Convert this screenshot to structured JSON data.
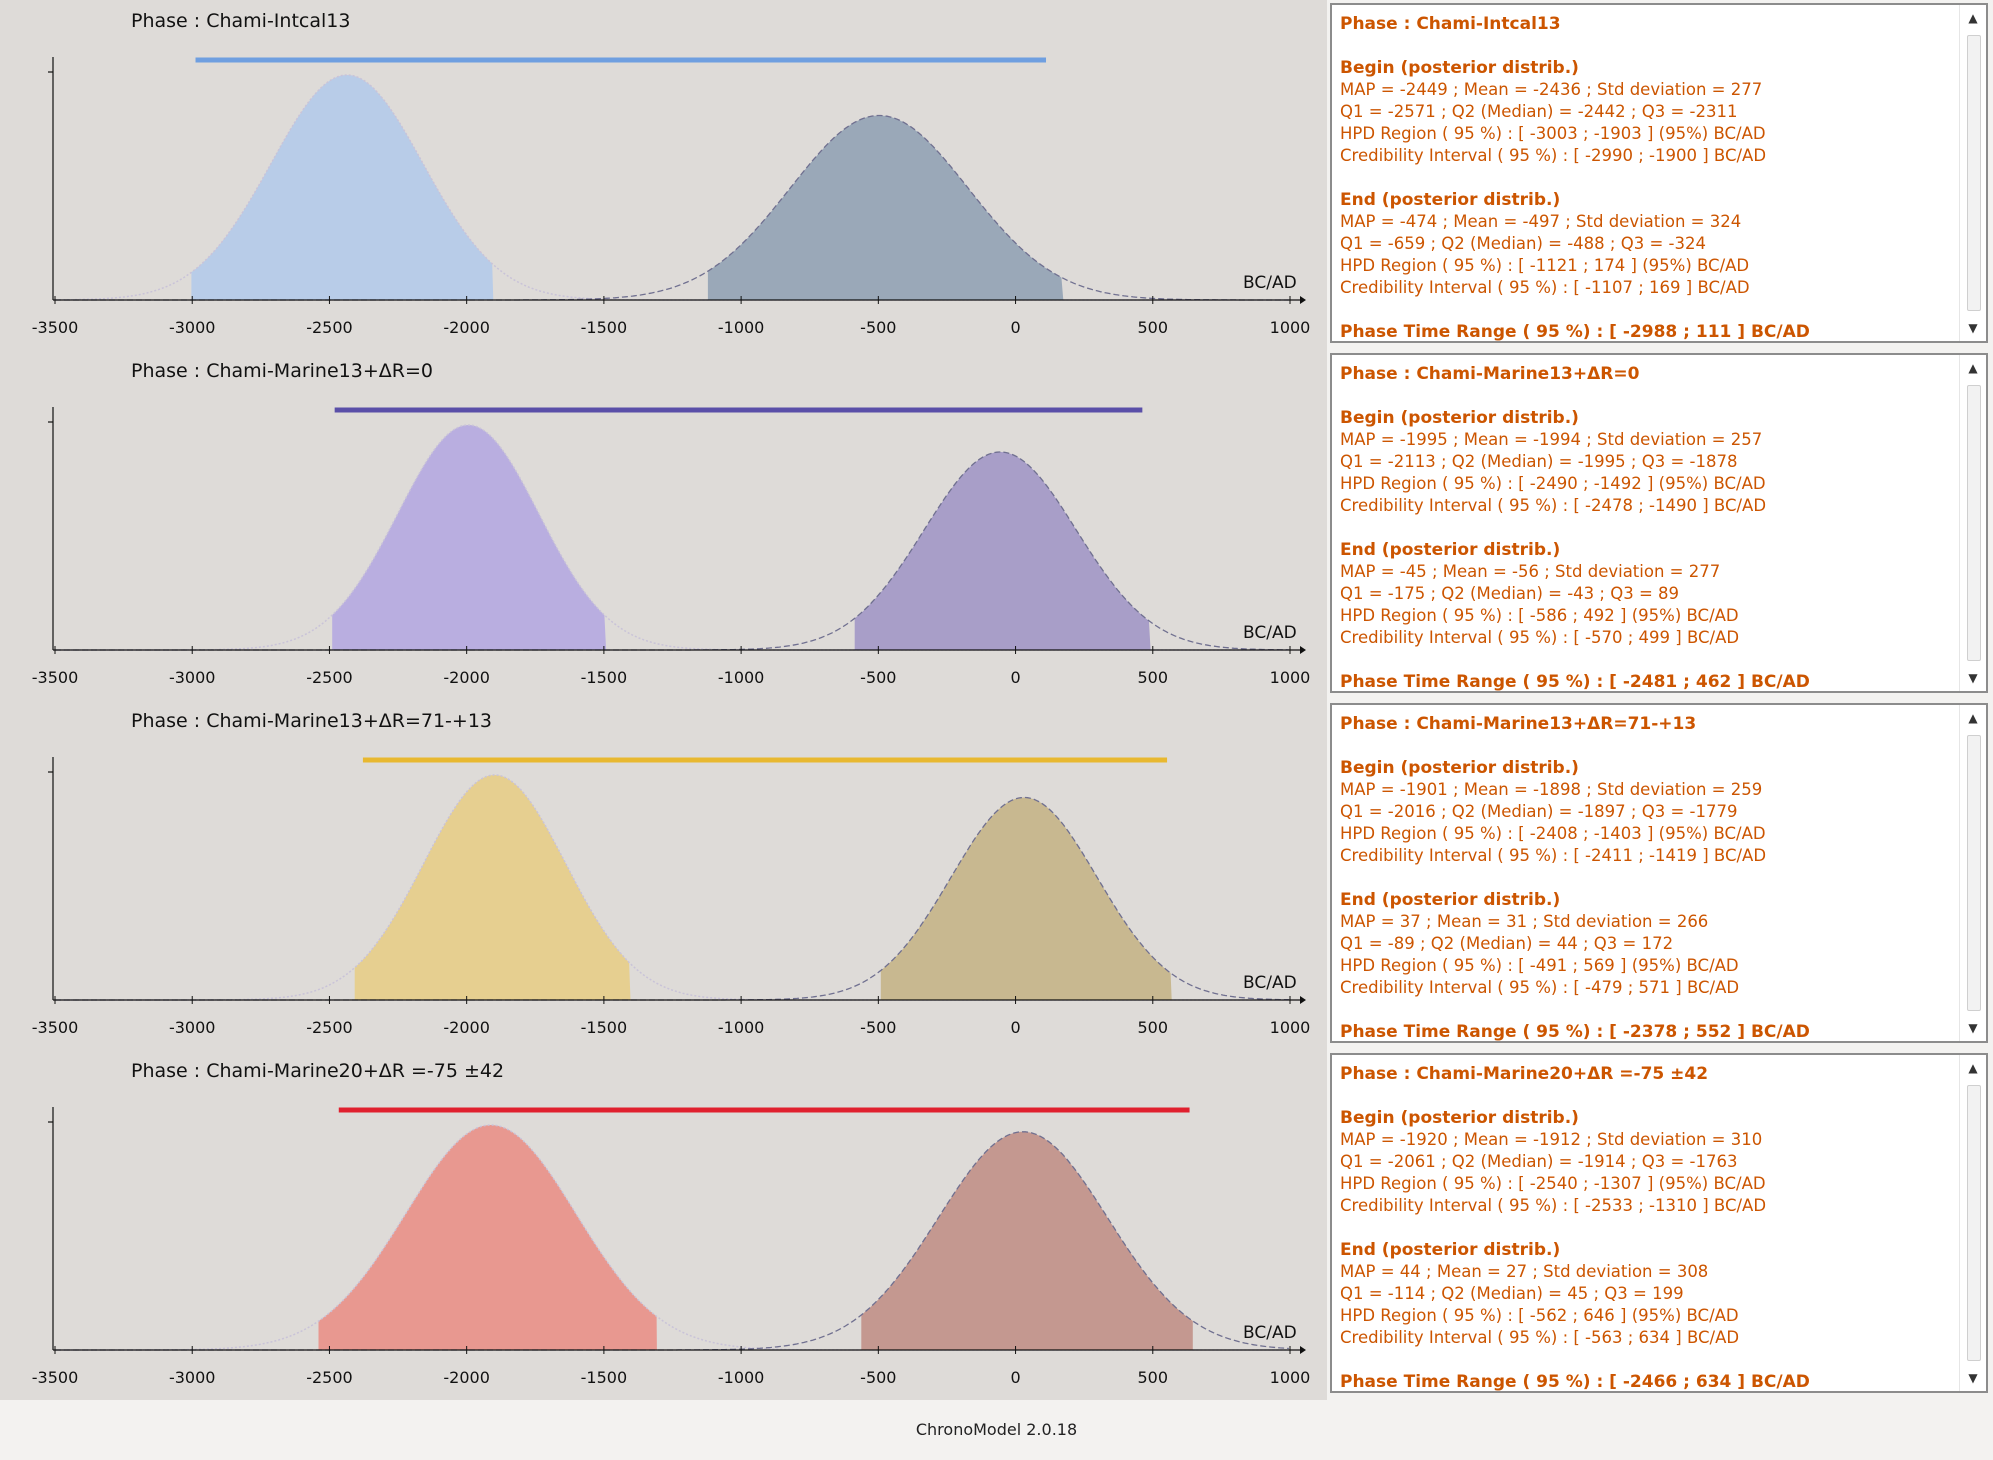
{
  "footer": {
    "app_version": "ChronoModel 2.0.18"
  },
  "axis": {
    "xmin": -3500,
    "xmax": 1000,
    "ticks": [
      "-3500",
      "-3000",
      "-2500",
      "-2000",
      "-1500",
      "-1000",
      "-500",
      "0",
      "500",
      "1000"
    ],
    "unit_label": "BC/AD"
  },
  "phases": [
    {
      "title": "Phase : Chami-Intcal13",
      "color": "#6f9fe0",
      "begin_fill": "#b8cce8",
      "end_fill": "#9aa8b8",
      "time_range": [
        -2988,
        111
      ],
      "begin": {
        "mean": -2436,
        "sd": 277,
        "hpd": [
          -3003,
          -1903
        ],
        "peak": 1.0
      },
      "end": {
        "mean": -497,
        "sd": 324,
        "hpd": [
          -1121,
          174
        ],
        "peak": 0.82
      },
      "stats": {
        "header": "Phase : Chami-Intcal13",
        "begin_title": "Begin (posterior distrib.)",
        "begin_lines": [
          "MAP = -2449 ; Mean = -2436 ; Std deviation = 277",
          "Q1 = -2571 ; Q2 (Median) = -2442 ; Q3 = -2311",
          "HPD Region ( 95 %) : [ -3003 ; -1903 ] (95%) BC/AD",
          "Credibility Interval ( 95 %) : [ -2990 ; -1900 ] BC/AD"
        ],
        "end_title": "End (posterior distrib.)",
        "end_lines": [
          "MAP = -474 ; Mean = -497 ; Std deviation = 324",
          "Q1 = -659 ; Q2 (Median) = -488 ; Q3 = -324",
          "HPD Region ( 95 %) : [ -1121 ; 174 ] (95%) BC/AD",
          "Credibility Interval ( 95 %) : [ -1107 ; 169 ] BC/AD"
        ],
        "time_range": "Phase Time Range ( 95 %) : [ -2988 ; 111 ] BC/AD"
      }
    },
    {
      "title": "Phase : Chami-Marine13+ΔR=0",
      "color": "#5a4fa8",
      "begin_fill": "#b9aee0",
      "end_fill": "#a89ec8",
      "time_range": [
        -2481,
        462
      ],
      "begin": {
        "mean": -1994,
        "sd": 257,
        "hpd": [
          -2490,
          -1492
        ],
        "peak": 1.0
      },
      "end": {
        "mean": -56,
        "sd": 277,
        "hpd": [
          -586,
          492
        ],
        "peak": 0.88
      },
      "stats": {
        "header": "Phase : Chami-Marine13+ΔR=0",
        "begin_title": "Begin (posterior distrib.)",
        "begin_lines": [
          "MAP = -1995 ; Mean = -1994 ; Std deviation = 257",
          "Q1 = -2113 ; Q2 (Median) = -1995 ; Q3 = -1878",
          "HPD Region ( 95 %) : [ -2490 ; -1492 ] (95%) BC/AD",
          "Credibility Interval ( 95 %) : [ -2478 ; -1490 ] BC/AD"
        ],
        "end_title": "End (posterior distrib.)",
        "end_lines": [
          "MAP = -45 ; Mean = -56 ; Std deviation = 277",
          "Q1 = -175 ; Q2 (Median) = -43 ; Q3 = 89",
          "HPD Region ( 95 %) : [ -586 ; 492 ] (95%) BC/AD",
          "Credibility Interval ( 95 %) : [ -570 ; 499 ] BC/AD"
        ],
        "time_range": "Phase Time Range ( 95 %) : [ -2481 ; 462 ] BC/AD"
      }
    },
    {
      "title": "Phase : Chami-Marine13+ΔR=71-+13",
      "color": "#e8b830",
      "begin_fill": "#e6cf90",
      "end_fill": "#c8b890",
      "time_range": [
        -2378,
        552
      ],
      "begin": {
        "mean": -1898,
        "sd": 259,
        "hpd": [
          -2408,
          -1403
        ],
        "peak": 1.0
      },
      "end": {
        "mean": 31,
        "sd": 266,
        "hpd": [
          -491,
          569
        ],
        "peak": 0.9
      },
      "stats": {
        "header": "Phase : Chami-Marine13+ΔR=71-+13",
        "begin_title": "Begin (posterior distrib.)",
        "begin_lines": [
          "MAP = -1901 ; Mean = -1898 ; Std deviation = 259",
          "Q1 = -2016 ; Q2 (Median) = -1897 ; Q3 = -1779",
          "HPD Region ( 95 %) : [ -2408 ; -1403 ] (95%) BC/AD",
          "Credibility Interval ( 95 %) : [ -2411 ; -1419 ] BC/AD"
        ],
        "end_title": "End (posterior distrib.)",
        "end_lines": [
          "MAP = 37 ; Mean = 31 ; Std deviation = 266",
          "Q1 = -89 ; Q2 (Median) = 44 ; Q3 = 172",
          "HPD Region ( 95 %) : [ -491 ; 569 ] (95%) BC/AD",
          "Credibility Interval ( 95 %) : [ -479 ; 571 ] BC/AD"
        ],
        "time_range": "Phase Time Range ( 95 %) : [ -2378 ; 552 ] BC/AD"
      }
    },
    {
      "title": "Phase : Chami-Marine20+ΔR =-75 ±42",
      "color": "#e0202e",
      "begin_fill": "#e89890",
      "end_fill": "#c49890",
      "time_range": [
        -2466,
        634
      ],
      "begin": {
        "mean": -1912,
        "sd": 310,
        "hpd": [
          -2540,
          -1307
        ],
        "peak": 1.0
      },
      "end": {
        "mean": 27,
        "sd": 308,
        "hpd": [
          -562,
          646
        ],
        "peak": 0.97
      },
      "stats": {
        "header": "Phase : Chami-Marine20+ΔR =-75 ±42",
        "begin_title": "Begin (posterior distrib.)",
        "begin_lines": [
          "MAP = -1920 ; Mean = -1912 ; Std deviation = 310",
          "Q1 = -2061 ; Q2 (Median) = -1914 ; Q3 = -1763",
          "HPD Region ( 95 %) : [ -2540 ; -1307 ] (95%) BC/AD",
          "Credibility Interval ( 95 %) : [ -2533 ; -1310 ] BC/AD"
        ],
        "end_title": "End (posterior distrib.)",
        "end_lines": [
          "MAP = 44 ; Mean = 27 ; Std deviation = 308",
          "Q1 = -114 ; Q2 (Median) = 45 ; Q3 = 199",
          "HPD Region ( 95 %) : [ -562 ; 646 ] (95%) BC/AD",
          "Credibility Interval ( 95 %) : [ -563 ; 634 ] BC/AD"
        ],
        "time_range": "Phase Time Range ( 95 %) : [ -2466 ; 634 ] BC/AD"
      }
    }
  ]
}
